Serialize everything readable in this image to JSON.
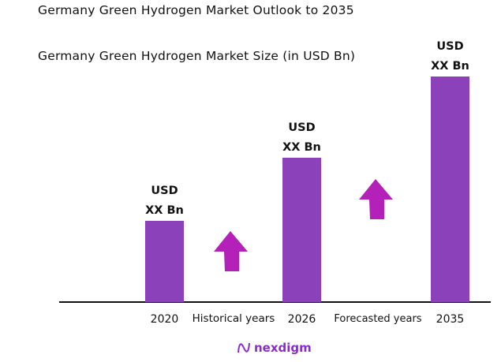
{
  "header": {
    "title": "Germany Green Hydrogen Market Outlook to 2035",
    "subtitle": "Germany Green Hydrogen Market Size (in USD Bn)"
  },
  "chart_data": {
    "type": "bar",
    "title": "Germany Green Hydrogen Market Size (in USD Bn)",
    "categories": [
      "2020",
      "2026",
      "2035"
    ],
    "values": [
      103,
      183,
      286
    ],
    "data_labels": [
      [
        "USD",
        "XX Bn"
      ],
      [
        "USD",
        "XX Bn"
      ],
      [
        "USD",
        "XX Bn"
      ]
    ],
    "ylim": [
      0,
      290
    ],
    "grid": false,
    "bar_color": "#8a41b9",
    "arrow_color": "#b321b9",
    "annotations": [
      "Historical years",
      "Forecasted years"
    ]
  },
  "footer": {
    "logo_text": "nexdigm",
    "logo_color": "#8a2bd0"
  }
}
